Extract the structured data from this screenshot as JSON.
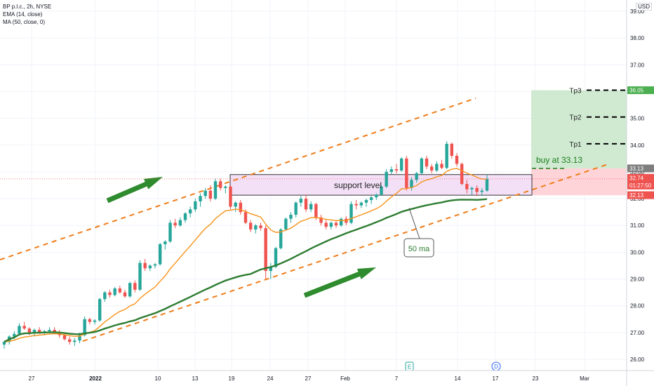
{
  "legend": {
    "title": "BP p.l.c., 2h, NYSE",
    "ema": "EMA (14, close)",
    "ma": "MA (50, close, 0)"
  },
  "currency": "USD",
  "colors": {
    "up": "#26a69a",
    "down": "#ef5350",
    "ema": "#f7931a",
    "ma": "#2e7d32",
    "channel": "#ef7d1a",
    "support_fill": "#f3e0f7",
    "target_zone": "#c8e6c9",
    "stop_zone": "#ffcdd2",
    "arrow": "#2e8b2e",
    "buy_text": "#1b7d1b"
  },
  "chart_data": {
    "type": "candlestick",
    "title": "BP p.l.c., 2h, NYSE",
    "y_axis": {
      "ylim": [
        25.75,
        39.7
      ],
      "ticks": [
        "26.00",
        "27.00",
        "28.00",
        "29.00",
        "30.00",
        "31.00",
        "32.00",
        "33.00",
        "34.00",
        "35.00",
        "36.00",
        "37.00",
        "38.00",
        "39.00"
      ],
      "side": "right"
    },
    "x_axis": {
      "ticks": [
        "27",
        "2022",
        "10",
        "13",
        "19",
        "24",
        "27",
        "Feb",
        "7",
        "14",
        "17",
        "23",
        "Mar"
      ]
    },
    "indicators": [
      "EMA (14, close)",
      "MA (50, close, 0)"
    ],
    "price_tags": [
      {
        "label": "36.05",
        "value": 36.05,
        "kind": "target"
      },
      {
        "label": "33.13",
        "value": 33.13,
        "kind": "entry"
      },
      {
        "label": "32.74",
        "value": 32.74,
        "kind": "last",
        "sub": "01:27:50"
      },
      {
        "label": "32.13",
        "value": 32.13,
        "kind": "stop"
      }
    ],
    "targets": [
      {
        "label": "Tp3",
        "value": 36.05
      },
      {
        "label": "Tp2",
        "value": 35.05
      },
      {
        "label": "Tp1",
        "value": 34.05
      }
    ],
    "annotations": {
      "support": {
        "label": "support level",
        "low": 32.13,
        "high": 32.9
      },
      "buy": {
        "label": "buy at 33.13",
        "value": 33.13
      },
      "ma_callout": "50 ma",
      "events": [
        "E",
        "D"
      ]
    }
  }
}
